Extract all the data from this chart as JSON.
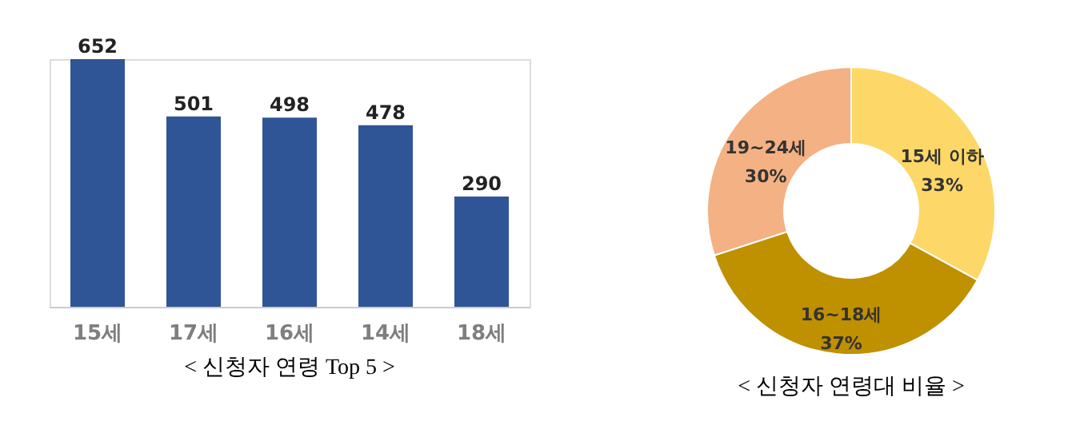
{
  "chart_data": [
    {
      "type": "bar",
      "title": "< 신청자 연령 Top 5 >",
      "categories": [
        "15세",
        "17세",
        "16세",
        "14세",
        "18세"
      ],
      "values": [
        652,
        501,
        498,
        478,
        290
      ],
      "color": "#2f5597",
      "data_labels": true,
      "grid": false
    },
    {
      "type": "donut",
      "title": "< 신청자 연령대 비율 >",
      "categories": [
        "15세 이하",
        "16~18세",
        "19~24세"
      ],
      "values": [
        33,
        37,
        30
      ],
      "value_labels": [
        "33%",
        "37%",
        "30%"
      ],
      "colors": [
        "#fdd868",
        "#bf9000",
        "#f4b183"
      ]
    }
  ]
}
